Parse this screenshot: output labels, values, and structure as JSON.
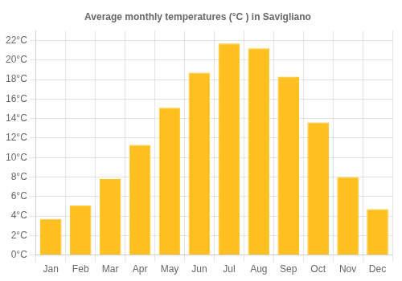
{
  "chart_data": {
    "type": "bar",
    "title": "Average monthly temperatures (°C ) in Savigliano",
    "categories": [
      "Jan",
      "Feb",
      "Mar",
      "Apr",
      "May",
      "Jun",
      "Jul",
      "Aug",
      "Sep",
      "Oct",
      "Nov",
      "Dec"
    ],
    "values": [
      3.7,
      5.1,
      7.8,
      11.3,
      15.1,
      18.7,
      21.7,
      21.2,
      18.3,
      13.6,
      8.0,
      4.7
    ],
    "color": "#FFC020",
    "ylim": [
      0,
      23
    ],
    "yticks": [
      {
        "value": 0,
        "label": "0°C"
      },
      {
        "value": 2,
        "label": "2°C"
      },
      {
        "value": 4,
        "label": "4°C"
      },
      {
        "value": 6,
        "label": "6°C"
      },
      {
        "value": 8,
        "label": "8°C"
      },
      {
        "value": 10,
        "label": "10°C"
      },
      {
        "value": 12,
        "label": "12°C"
      },
      {
        "value": 14,
        "label": "14°C"
      },
      {
        "value": 16,
        "label": "16°C"
      },
      {
        "value": 18,
        "label": "18°C"
      },
      {
        "value": 20,
        "label": "20°C"
      },
      {
        "value": 22,
        "label": "22°C"
      }
    ],
    "grid": true
  }
}
